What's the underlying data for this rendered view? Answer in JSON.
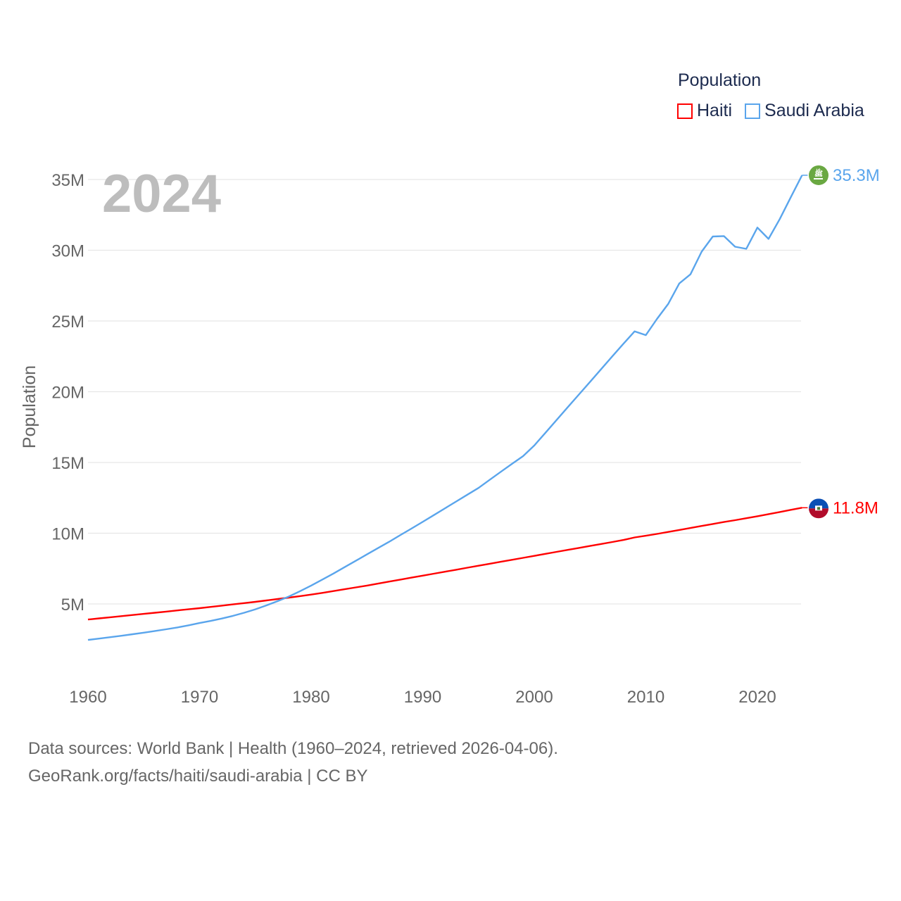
{
  "chart_data": {
    "type": "line",
    "title": "Population",
    "year_label": "2024",
    "ylabel": "Population",
    "xlabel": "",
    "xlim": [
      1960,
      2024
    ],
    "ylim": [
      0,
      36000000
    ],
    "x_ticks": [
      "1960",
      "1970",
      "1980",
      "1990",
      "2000",
      "2010",
      "2020"
    ],
    "x_tick_values": [
      1960,
      1970,
      1980,
      1990,
      2000,
      2010,
      2020
    ],
    "y_ticks": [
      "5M",
      "10M",
      "15M",
      "20M",
      "25M",
      "30M",
      "35M"
    ],
    "y_tick_values": [
      5,
      10,
      15,
      20,
      25,
      30,
      35
    ],
    "unit": "millions",
    "grid": true,
    "legend_position": "top-right",
    "x": [
      1960,
      1961,
      1962,
      1963,
      1964,
      1965,
      1966,
      1967,
      1968,
      1969,
      1970,
      1971,
      1972,
      1973,
      1974,
      1975,
      1976,
      1977,
      1978,
      1979,
      1980,
      1981,
      1982,
      1983,
      1984,
      1985,
      1986,
      1987,
      1988,
      1989,
      1990,
      1991,
      1992,
      1993,
      1994,
      1995,
      1996,
      1997,
      1998,
      1999,
      2000,
      2001,
      2002,
      2003,
      2004,
      2005,
      2006,
      2007,
      2008,
      2009,
      2010,
      2011,
      2012,
      2013,
      2014,
      2015,
      2016,
      2017,
      2018,
      2019,
      2020,
      2021,
      2022,
      2023,
      2024
    ],
    "series": [
      {
        "name": "Haiti",
        "color": "#ff0000",
        "end_label": "11.8M",
        "flag": "haiti-flag",
        "values": [
          3.9,
          3.98,
          4.06,
          4.14,
          4.22,
          4.3,
          4.38,
          4.46,
          4.54,
          4.62,
          4.7,
          4.79,
          4.88,
          4.97,
          5.06,
          5.15,
          5.25,
          5.35,
          5.45,
          5.55,
          5.66,
          5.78,
          5.91,
          6.04,
          6.17,
          6.3,
          6.44,
          6.58,
          6.72,
          6.86,
          7.0,
          7.14,
          7.28,
          7.42,
          7.56,
          7.7,
          7.84,
          7.98,
          8.12,
          8.26,
          8.4,
          8.54,
          8.68,
          8.82,
          8.96,
          9.1,
          9.24,
          9.38,
          9.52,
          9.7,
          9.82,
          9.95,
          10.09,
          10.23,
          10.37,
          10.51,
          10.65,
          10.79,
          10.92,
          11.06,
          11.2,
          11.35,
          11.5,
          11.65,
          11.8
        ]
      },
      {
        "name": "Saudi Arabia",
        "color": "#5aa5ec",
        "end_label": "35.3M",
        "flag": "saudi-arabia-flag",
        "values": [
          2.46,
          2.55,
          2.65,
          2.75,
          2.86,
          2.97,
          3.09,
          3.21,
          3.34,
          3.49,
          3.65,
          3.8,
          3.97,
          4.16,
          4.38,
          4.62,
          4.9,
          5.2,
          5.52,
          5.9,
          6.3,
          6.72,
          7.15,
          7.6,
          8.05,
          8.5,
          8.95,
          9.4,
          9.87,
          10.33,
          10.8,
          11.28,
          11.76,
          12.24,
          12.72,
          13.2,
          13.77,
          14.34,
          14.9,
          15.45,
          16.2,
          17.1,
          18.0,
          18.9,
          19.8,
          20.7,
          21.6,
          22.5,
          23.4,
          24.27,
          24.0,
          25.15,
          26.2,
          27.65,
          28.3,
          29.9,
          30.97,
          31.0,
          30.25,
          30.1,
          31.6,
          30.8,
          32.2,
          33.75,
          35.3
        ]
      }
    ]
  },
  "footer": {
    "line1": "Data sources: World Bank | Health (1960–2024, retrieved 2026-04-06).",
    "line2": "GeoRank.org/facts/haiti/saudi-arabia | CC BY"
  }
}
